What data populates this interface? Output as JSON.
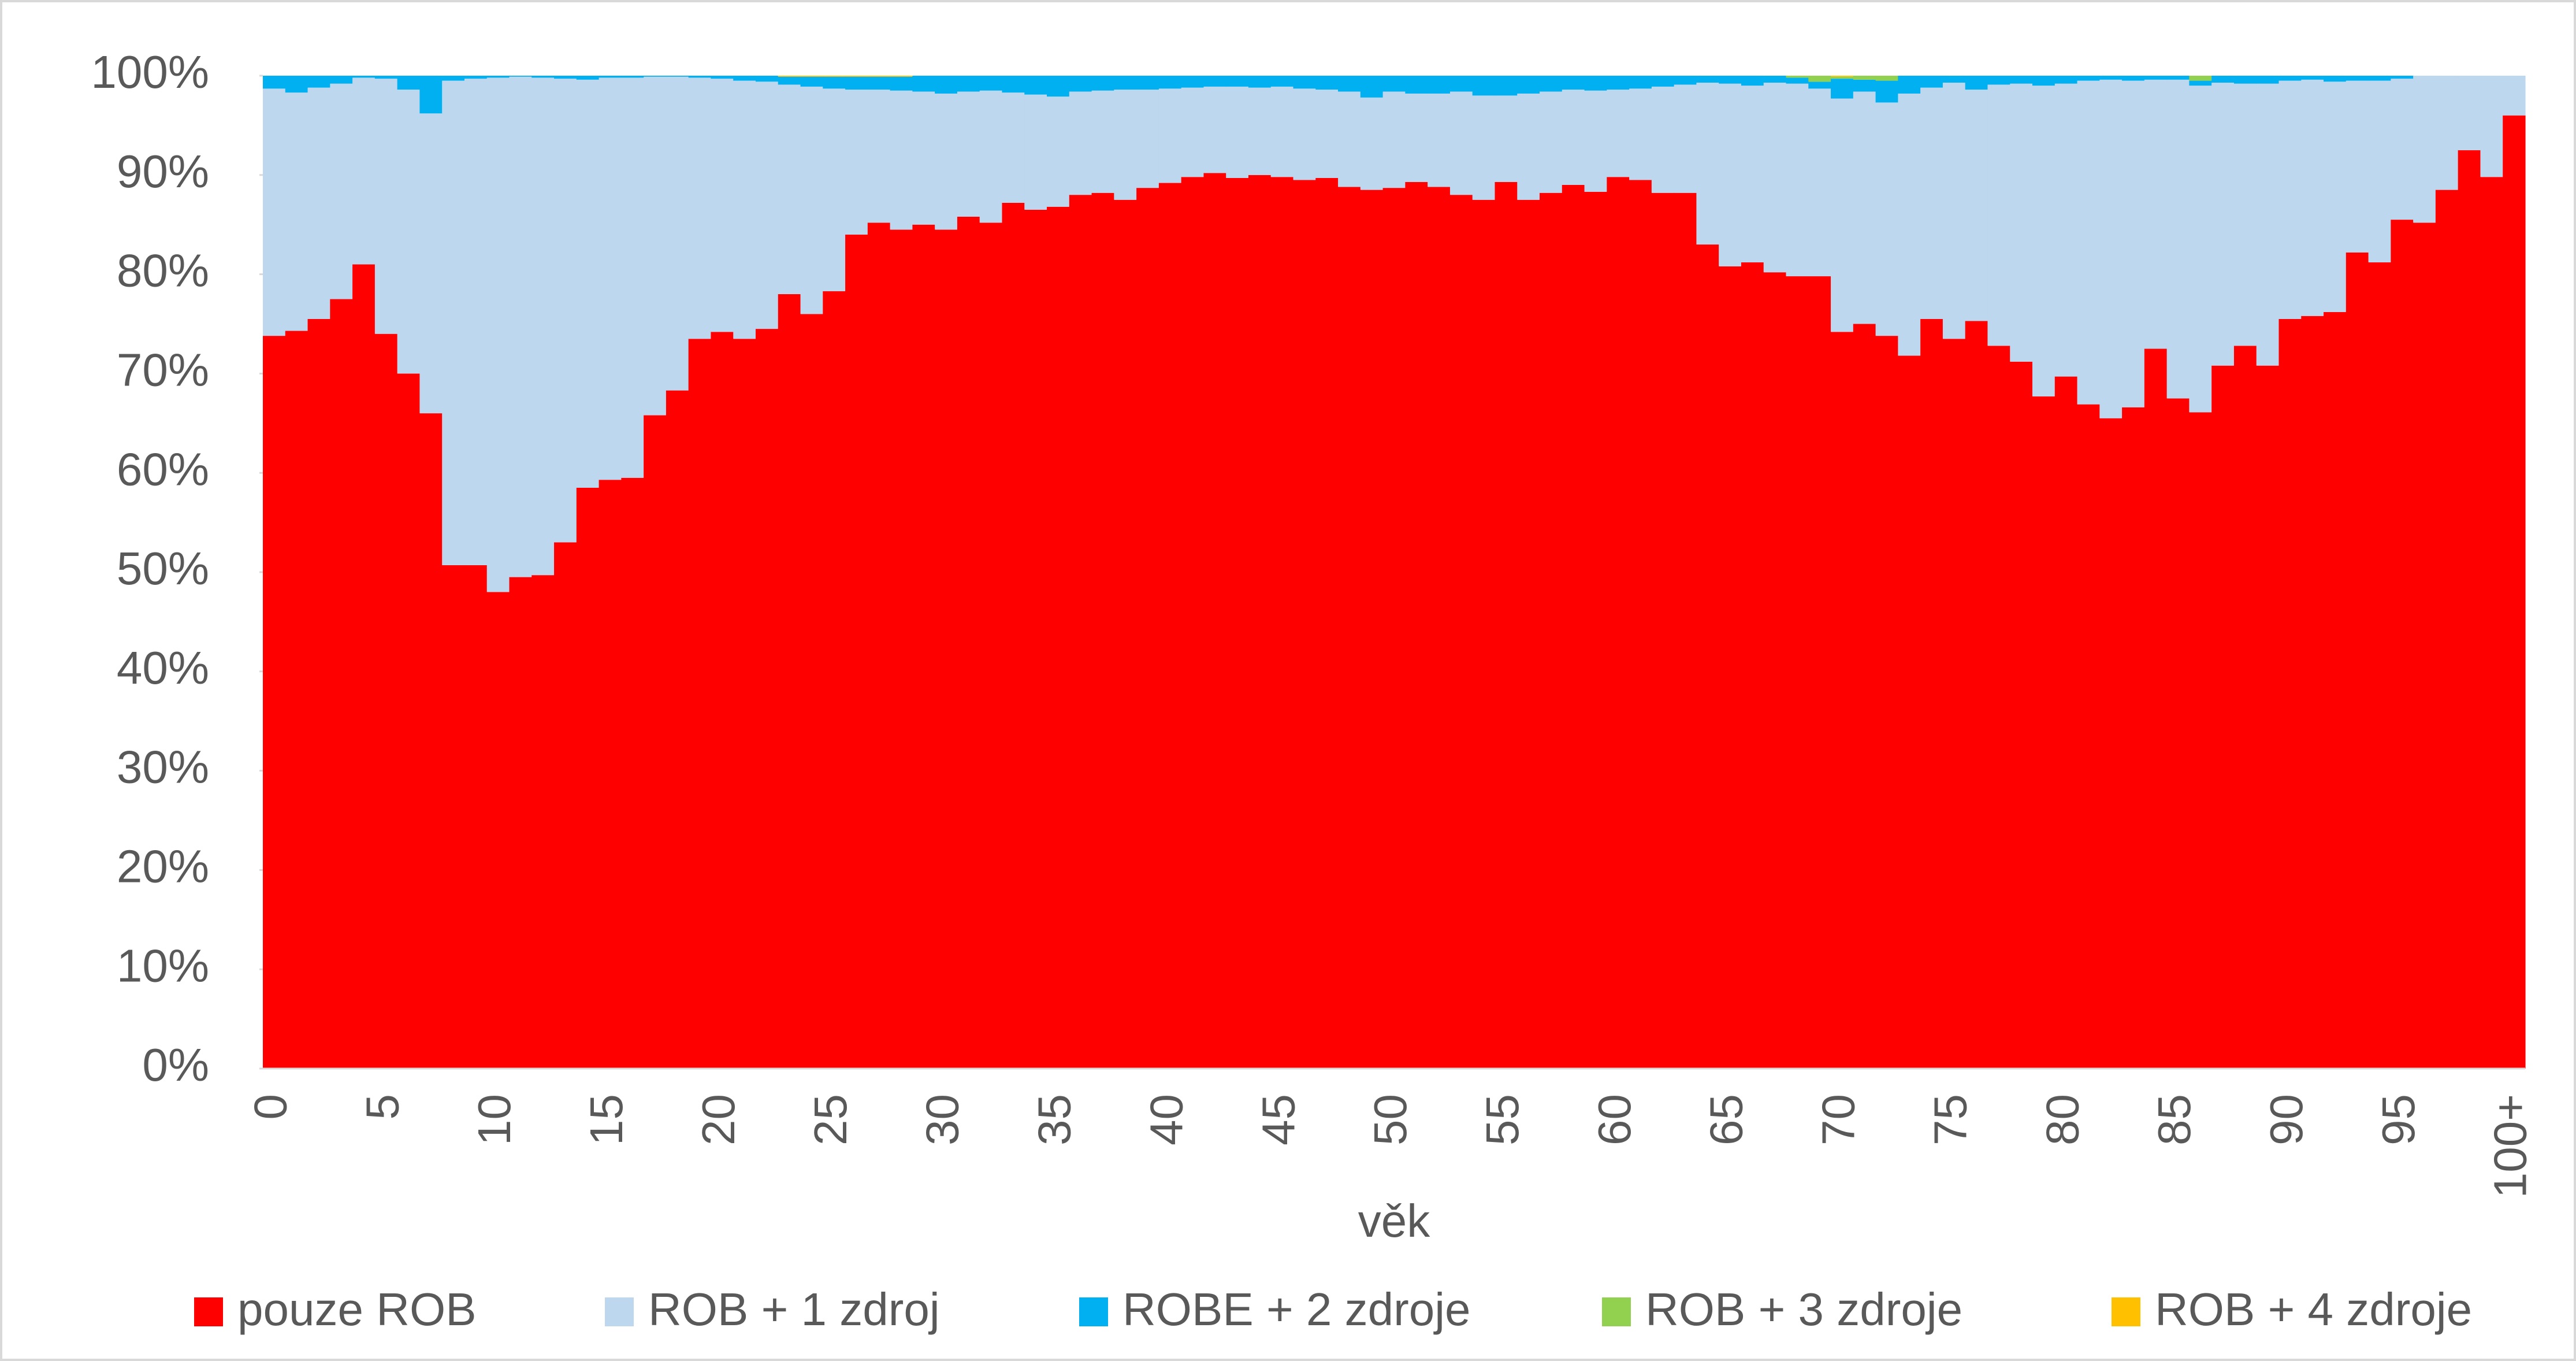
{
  "chart_data": {
    "type": "stacked_bar_100",
    "x_label": "věk",
    "categories": [
      "0",
      null,
      null,
      null,
      null,
      "5",
      null,
      null,
      null,
      null,
      "10",
      null,
      null,
      null,
      null,
      "15",
      null,
      null,
      null,
      null,
      "20",
      null,
      null,
      null,
      null,
      "25",
      null,
      null,
      null,
      null,
      "30",
      null,
      null,
      null,
      null,
      "35",
      null,
      null,
      null,
      null,
      "40",
      null,
      null,
      null,
      null,
      "45",
      null,
      null,
      null,
      null,
      "50",
      null,
      null,
      null,
      null,
      "55",
      null,
      null,
      null,
      null,
      "60",
      null,
      null,
      null,
      null,
      "65",
      null,
      null,
      null,
      null,
      "70",
      null,
      null,
      null,
      null,
      "75",
      null,
      null,
      null,
      null,
      "80",
      null,
      null,
      null,
      null,
      "85",
      null,
      null,
      null,
      null,
      "90",
      null,
      null,
      null,
      null,
      "95",
      null,
      null,
      null,
      null,
      "100+"
    ],
    "series": [
      {
        "name": "pouze ROB",
        "color": "#ff0000",
        "values": [
          73.8,
          74.3,
          75.5,
          77.5,
          81,
          74,
          70,
          66,
          50.7,
          50.7,
          48,
          49.5,
          49.7,
          53,
          58.5,
          59.3,
          59.5,
          65.8,
          68.3,
          73.5,
          74.2,
          73.5,
          74.5,
          78,
          76,
          78.3,
          84,
          85.2,
          84.5,
          85,
          84.5,
          85.8,
          85.2,
          87.2,
          86.5,
          86.8,
          88,
          88.2,
          87.5,
          88.7,
          89.2,
          89.8,
          90.2,
          89.7,
          90,
          89.8,
          89.5,
          89.7,
          88.8,
          88.5,
          88.7,
          89.3,
          88.8,
          88,
          87.5,
          89.3,
          87.5,
          88.2,
          89,
          88.3,
          89.8,
          89.5,
          88.2,
          88.2,
          83,
          80.8,
          81.2,
          80.2,
          79.8,
          79.8,
          74.2,
          75,
          73.8,
          71.8,
          75.5,
          73.5,
          75.3,
          72.8,
          71.2,
          67.7,
          69.7,
          66.9,
          65.5,
          66.6,
          72.5,
          67.5,
          66.1,
          70.8,
          72.8,
          70.8,
          75.5,
          75.8,
          76.2,
          82.2,
          81.2,
          85.5,
          85.2,
          88.5,
          92.5,
          89.8,
          96
        ]
      },
      {
        "name": "ROB + 1 zdroj",
        "color": "#bdd7ee",
        "values": [
          24.9,
          24,
          23.3,
          21.7,
          18.8,
          25.7,
          28.6,
          30.2,
          48.8,
          49,
          51.8,
          50.4,
          50.1,
          46.7,
          41.1,
          40.5,
          40.3,
          34.1,
          31.6,
          26.3,
          25.5,
          26,
          24.9,
          21.1,
          22.9,
          20.4,
          14.6,
          13.4,
          14,
          13.4,
          13.7,
          12.6,
          13.3,
          11.1,
          11.6,
          11.1,
          10.4,
          10.3,
          11.1,
          9.9,
          9.5,
          9,
          8.7,
          9.2,
          8.8,
          9.1,
          9.2,
          8.9,
          9.6,
          9.3,
          9.7,
          8.9,
          9.4,
          10.4,
          10.5,
          8.7,
          10.7,
          10.2,
          9.6,
          10.2,
          8.8,
          9.2,
          10.7,
          10.9,
          16.3,
          18.4,
          17.8,
          19.1,
          19.4,
          18.9,
          23.5,
          23.4,
          23.5,
          26.4,
          23.3,
          25.8,
          23.3,
          26.3,
          28,
          31.3,
          29.5,
          32.6,
          34.1,
          32.9,
          27.1,
          32.1,
          32.9,
          28.5,
          26.4,
          28.4,
          24,
          23.8,
          23.2,
          17.3,
          18.3,
          14.2,
          14.8,
          11.5,
          7.5,
          10.2,
          4
        ]
      },
      {
        "name": "ROBE + 2 zdroje",
        "color": "#00b0f0",
        "values": [
          1.3,
          1.7,
          1.2,
          0.8,
          0.2,
          0.3,
          1.4,
          3.8,
          0.5,
          0.3,
          0.2,
          0.1,
          0.2,
          0.3,
          0.4,
          0.2,
          0.2,
          0.1,
          0.1,
          0.2,
          0.3,
          0.5,
          0.6,
          0.8,
          1,
          1.2,
          1.3,
          1.3,
          1.4,
          1.6,
          1.8,
          1.6,
          1.5,
          1.7,
          1.9,
          2.1,
          1.6,
          1.5,
          1.4,
          1.4,
          1.3,
          1.2,
          1.1,
          1.1,
          1.2,
          1.1,
          1.3,
          1.4,
          1.6,
          2.2,
          1.6,
          1.8,
          1.8,
          1.6,
          2,
          2,
          1.8,
          1.6,
          1.4,
          1.5,
          1.4,
          1.3,
          1.1,
          0.9,
          0.7,
          0.8,
          1,
          0.7,
          0.6,
          0.7,
          2,
          1.2,
          2.2,
          1.8,
          1.2,
          0.7,
          1.4,
          0.9,
          0.8,
          1,
          0.8,
          0.5,
          0.4,
          0.5,
          0.4,
          0.4,
          0.5,
          0.7,
          0.8,
          0.8,
          0.5,
          0.4,
          0.6,
          0.5,
          0.5,
          0.3,
          0,
          0,
          0,
          0,
          0
        ]
      },
      {
        "name": "ROB + 3 zdroje",
        "color": "#92d050",
        "values": [
          0,
          0,
          0,
          0,
          0,
          0,
          0,
          0,
          0,
          0,
          0,
          0,
          0,
          0,
          0,
          0,
          0,
          0,
          0,
          0,
          0,
          0,
          0,
          0,
          0,
          0,
          0,
          0,
          0,
          0,
          0,
          0,
          0,
          0,
          0,
          0,
          0,
          0,
          0,
          0,
          0,
          0,
          0,
          0,
          0,
          0,
          0,
          0,
          0,
          0,
          0,
          0,
          0,
          0,
          0,
          0,
          0,
          0,
          0,
          0,
          0,
          0,
          0,
          0,
          0,
          0,
          0,
          0,
          0.2,
          0.6,
          0.2,
          0.4,
          0.5,
          0,
          0,
          0,
          0,
          0,
          0,
          0,
          0,
          0,
          0,
          0,
          0,
          0,
          0.5,
          0,
          0,
          0,
          0,
          0,
          0,
          0,
          0,
          0,
          0,
          0,
          0,
          0,
          0
        ]
      },
      {
        "name": "ROB + 4 zdroje",
        "color": "#ffc000",
        "values": [
          0,
          0,
          0,
          0,
          0,
          0,
          0,
          0,
          0,
          0,
          0,
          0,
          0,
          0,
          0,
          0,
          0,
          0,
          0,
          0,
          0,
          0,
          0,
          0.1,
          0.1,
          0.1,
          0.1,
          0.1,
          0.1,
          0,
          0,
          0,
          0,
          0,
          0,
          0,
          0,
          0,
          0,
          0,
          0,
          0,
          0,
          0,
          0,
          0,
          0,
          0,
          0,
          0,
          0,
          0,
          0,
          0,
          0,
          0,
          0,
          0,
          0,
          0,
          0,
          0,
          0,
          0,
          0,
          0,
          0,
          0,
          0,
          0,
          0.1,
          0,
          0,
          0,
          0,
          0,
          0,
          0,
          0,
          0,
          0,
          0,
          0,
          0,
          0,
          0,
          0,
          0,
          0,
          0,
          0,
          0,
          0,
          0,
          0,
          0,
          0,
          0,
          0,
          0,
          0
        ]
      }
    ],
    "ylim": [
      0,
      100
    ],
    "yticks": [
      {
        "value": 0,
        "label": "0%"
      },
      {
        "value": 10,
        "label": "10%"
      },
      {
        "value": 20,
        "label": "20%"
      },
      {
        "value": 30,
        "label": "30%"
      },
      {
        "value": 40,
        "label": "40%"
      },
      {
        "value": 50,
        "label": "50%"
      },
      {
        "value": 60,
        "label": "60%"
      },
      {
        "value": 70,
        "label": "70%"
      },
      {
        "value": 80,
        "label": "80%"
      },
      {
        "value": 90,
        "label": "90%"
      },
      {
        "value": 100,
        "label": "100%"
      }
    ],
    "legend": "bottom"
  }
}
